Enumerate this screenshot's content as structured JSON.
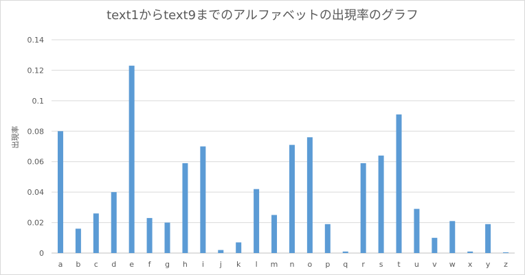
{
  "chart_data": {
    "type": "bar",
    "title": "text1からtext9までのアルファベットの出現率のグラフ",
    "ylabel": "出現率",
    "xlabel": "",
    "categories": [
      "a",
      "b",
      "c",
      "d",
      "e",
      "f",
      "g",
      "h",
      "i",
      "j",
      "k",
      "l",
      "m",
      "n",
      "o",
      "p",
      "q",
      "r",
      "s",
      "t",
      "u",
      "v",
      "w",
      "x",
      "y",
      "z"
    ],
    "values": [
      0.08,
      0.016,
      0.026,
      0.04,
      0.123,
      0.023,
      0.02,
      0.059,
      0.07,
      0.002,
      0.007,
      0.042,
      0.025,
      0.071,
      0.076,
      0.019,
      0.001,
      0.059,
      0.064,
      0.091,
      0.029,
      0.01,
      0.021,
      0.001,
      0.019,
      0.0005
    ],
    "ylim": [
      0,
      0.14
    ],
    "yticks": [
      0,
      0.02,
      0.04,
      0.06,
      0.08,
      0.1,
      0.12,
      0.14
    ],
    "ytick_labels": [
      "0",
      "0.02",
      "0.04",
      "0.06",
      "0.08",
      "0.1",
      "0.12",
      "0.14"
    ],
    "grid": true,
    "legend": "none",
    "bar_color": "#5b9bd5",
    "grid_color": "#d9d9d9"
  }
}
